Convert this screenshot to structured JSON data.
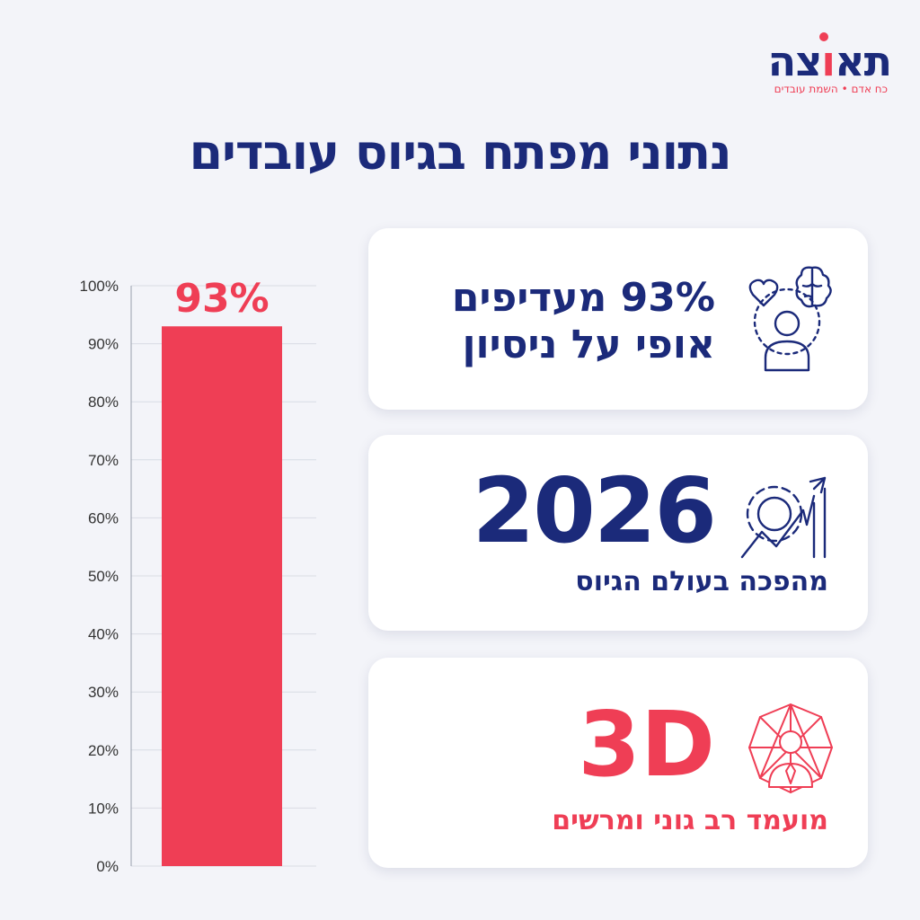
{
  "logo": {
    "word_part1": "תא",
    "word_red": "ו",
    "word_part2": "צה",
    "subtitle": "כח אדם • השמת עובדים"
  },
  "title": "נתוני מפתח בגיוס עובדים",
  "chart_data": {
    "type": "bar",
    "categories": [
      ""
    ],
    "values": [
      93
    ],
    "data_labels": [
      "93%"
    ],
    "ylim": [
      0,
      100
    ],
    "yticks": [
      "0%",
      "10%",
      "20%",
      "30%",
      "40%",
      "50%",
      "60%",
      "70%",
      "80%",
      "90%",
      "100%"
    ],
    "grid": true,
    "bar_color": "#ef3e55"
  },
  "cards": [
    {
      "icon": "brain-heart-person-icon",
      "text": "93% מעדיפים אופי על ניסיון"
    },
    {
      "icon": "gear-growth-arrow-icon",
      "big": "2026",
      "sub": "מהפכה בעולם הגיוס"
    },
    {
      "icon": "network-person-icon",
      "big": "3D",
      "sub": "מועמד רב גוני ומרשים"
    }
  ],
  "colors": {
    "navy": "#1b2a7a",
    "red": "#ef3e55",
    "background": "#f3f4f9"
  }
}
